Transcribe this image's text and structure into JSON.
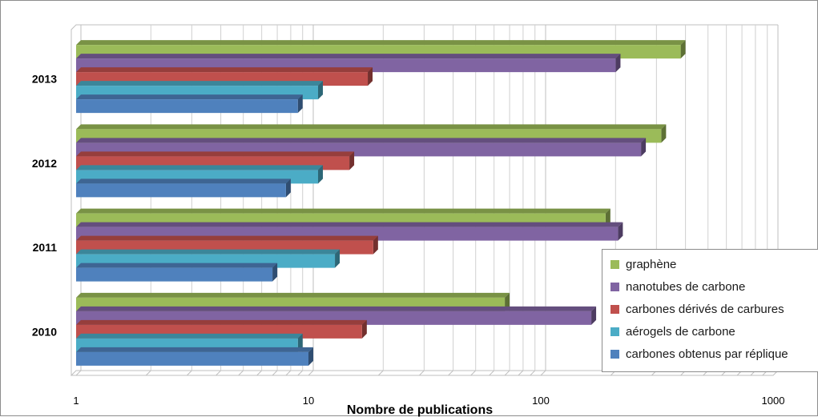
{
  "chart_data": {
    "type": "bar",
    "orientation": "horizontal",
    "title": "",
    "xlabel": "Nombre de publications",
    "ylabel": "",
    "x_scale": "log",
    "xlim": [
      1,
      1000
    ],
    "x_ticks": [
      "1",
      "10",
      "100",
      "1000"
    ],
    "categories": [
      "2010",
      "2011",
      "2012",
      "2013"
    ],
    "series": [
      {
        "name": "graphène",
        "color": "#9bbb59",
        "values": [
          70,
          190,
          330,
          400
        ]
      },
      {
        "name": "nanotubes de carbone",
        "color": "#8064a2",
        "values": [
          165,
          215,
          270,
          210
        ]
      },
      {
        "name": "carbones dérivés de carbures",
        "color": "#c0504d",
        "values": [
          17,
          19,
          15,
          18
        ]
      },
      {
        "name": "aérogels de carbone",
        "color": "#4bacc6",
        "values": [
          9,
          13,
          11,
          11
        ]
      },
      {
        "name": "carbones obtenus par réplique",
        "color": "#4f81bd",
        "values": [
          10,
          7,
          8,
          9
        ]
      }
    ],
    "legend_position": "bottom-right",
    "grid": true
  }
}
